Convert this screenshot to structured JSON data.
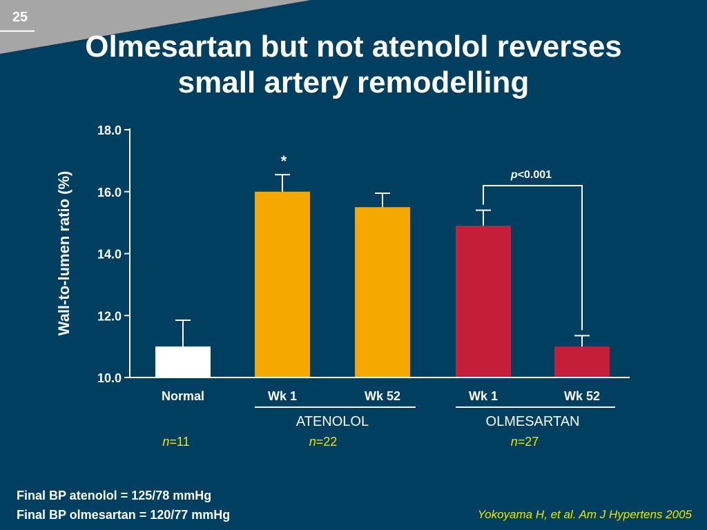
{
  "slide": {
    "number": "25",
    "title_lines": [
      "Olmesartan but not atenolol reverses",
      "small artery remodelling"
    ],
    "footnote_lines": [
      "Final BP atenolol = 125/78 mmHg",
      "Final BP olmesartan = 120/77 mmHg"
    ],
    "citation": "Yokoyama H, et al. Am J Hypertens 2005"
  },
  "colors": {
    "background": "#003f5f",
    "normal": "#ffffff",
    "atenolol": "#f5a800",
    "olmesartan": "#c41e3a",
    "n_label": "#f2e600"
  },
  "chart_data": {
    "type": "bar",
    "ylabel": "Wall-to-lumen ratio (%)",
    "ylim": [
      10.0,
      18.0
    ],
    "yticks": [
      "10.0",
      "12.0",
      "14.0",
      "16.0",
      "18.0"
    ],
    "categories": [
      "Normal",
      "Wk 1",
      "Wk 52",
      "Wk 1",
      "Wk 52"
    ],
    "values": [
      11.0,
      16.0,
      15.5,
      14.9,
      11.0
    ],
    "error_upper": [
      11.85,
      16.55,
      15.95,
      15.4,
      11.35
    ],
    "bar_groups": [
      "normal",
      "atenolol",
      "atenolol",
      "olmesartan",
      "olmesartan"
    ],
    "groups": [
      {
        "label": "ATENOLOL",
        "n_text": "22",
        "first": 1,
        "last": 2
      },
      {
        "label": "OLMESARTAN",
        "n_text": "27",
        "first": 3,
        "last": 4
      }
    ],
    "normal_n_text": "11",
    "n_prefix": "n",
    "n_sep": "=",
    "annotations": {
      "star": "*",
      "star_bar": 1,
      "bracket_from": 3,
      "bracket_to": 4,
      "p_prefix": "p",
      "p_rest": "<0.001"
    }
  }
}
